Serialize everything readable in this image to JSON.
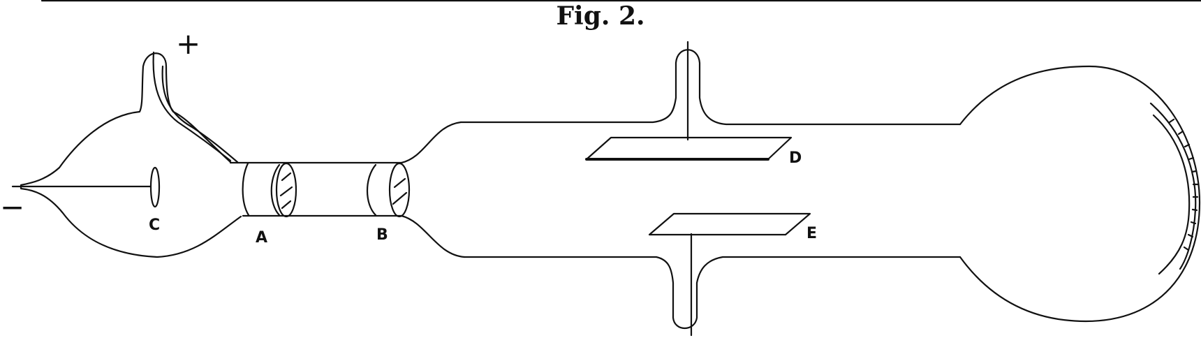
{
  "figure": {
    "caption": "Fig. 2.",
    "labels": {
      "cathode": "C",
      "anode": "A",
      "slit": "B",
      "plate_upper": "D",
      "plate_lower": "E",
      "positive": "+",
      "negative": "−"
    },
    "colors": {
      "ink": "#111111",
      "background": "#ffffff"
    }
  }
}
